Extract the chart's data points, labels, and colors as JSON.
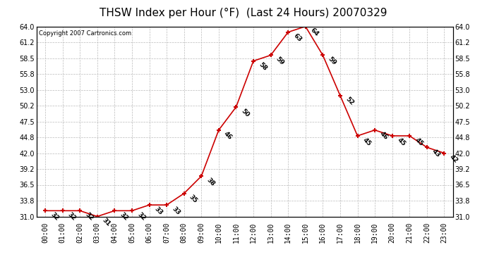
{
  "title": "THSW Index per Hour (°F)  (Last 24 Hours) 20070329",
  "copyright": "Copyright 2007 Cartronics.com",
  "hours": [
    "00:00",
    "01:00",
    "02:00",
    "03:00",
    "04:00",
    "05:00",
    "06:00",
    "07:00",
    "08:00",
    "09:00",
    "10:00",
    "11:00",
    "12:00",
    "13:00",
    "14:00",
    "15:00",
    "16:00",
    "17:00",
    "18:00",
    "19:00",
    "20:00",
    "21:00",
    "22:00",
    "23:00"
  ],
  "values": [
    32,
    32,
    32,
    31,
    32,
    32,
    33,
    33,
    35,
    38,
    46,
    50,
    58,
    59,
    63,
    64,
    59,
    52,
    45,
    46,
    45,
    45,
    43,
    42
  ],
  "ylim_min": 31.0,
  "ylim_max": 64.0,
  "yticks": [
    31.0,
    33.8,
    36.5,
    39.2,
    42.0,
    44.8,
    47.5,
    50.2,
    53.0,
    55.8,
    58.5,
    61.2,
    64.0
  ],
  "ytick_labels": [
    "31.0",
    "33.8",
    "36.5",
    "39.2",
    "42.0",
    "44.8",
    "47.5",
    "50.2",
    "53.0",
    "55.8",
    "58.5",
    "61.2",
    "64.0"
  ],
  "line_color": "#cc0000",
  "marker_color": "#cc0000",
  "bg_color": "#ffffff",
  "grid_color": "#bbbbbb",
  "title_fontsize": 11,
  "label_fontsize": 7,
  "annot_fontsize": 6.5,
  "copyright_fontsize": 6
}
